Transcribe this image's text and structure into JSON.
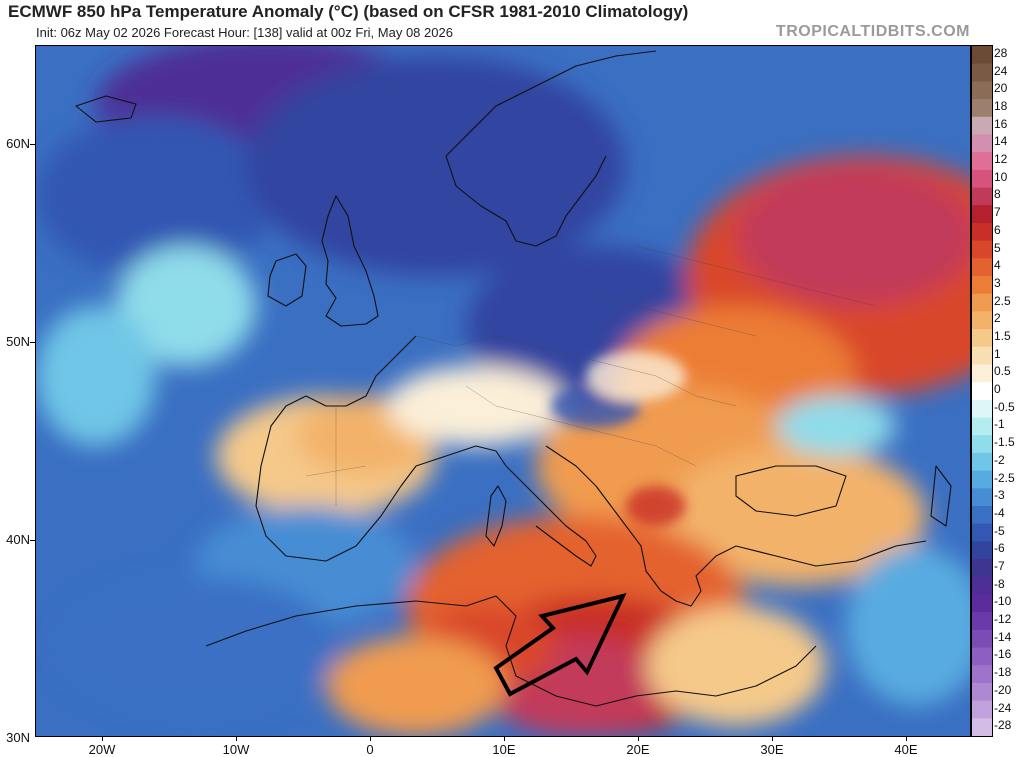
{
  "header": {
    "title": "ECMWF 850 hPa Temperature Anomaly (°C) (based on CFSR 1981-2010 Climatology)",
    "subtitle": "Init: 06z May 02 2026   Forecast Hour: [138]   valid at 00z Fri, May 08 2026",
    "watermark": "TROPICALTIDBITS.COM"
  },
  "map": {
    "lat_labels": [
      "60N",
      "50N",
      "40N",
      "30N"
    ],
    "lon_labels": [
      "20W",
      "10W",
      "0",
      "10E",
      "20E",
      "30E",
      "40E"
    ]
  },
  "colorbar": {
    "labels": [
      "28",
      "24",
      "20",
      "18",
      "16",
      "14",
      "12",
      "10",
      "8",
      "7",
      "6",
      "5",
      "4",
      "3",
      "2.5",
      "2",
      "1.5",
      "1",
      "0.5",
      "0",
      "-0.5",
      "-1",
      "-1.5",
      "-2",
      "-2.5",
      "-3",
      "-4",
      "-5",
      "-6",
      "-7",
      "-8",
      "-10",
      "-12",
      "-14",
      "-16",
      "-18",
      "-20",
      "-24",
      "-28"
    ],
    "colors": [
      "#6b4b34",
      "#7a5a42",
      "#8b6c57",
      "#9c806f",
      "#c9a9b4",
      "#d28fb0",
      "#e06f98",
      "#d8537c",
      "#c23a5a",
      "#b51f2e",
      "#c92f28",
      "#d9472b",
      "#e4622f",
      "#ec7d36",
      "#f09b4f",
      "#f3b26a",
      "#f5c98a",
      "#f8dfb2",
      "#fbefd8",
      "#ffffff",
      "#dff6f8",
      "#b5ecf0",
      "#8fdcea",
      "#6fc6e6",
      "#58abe0",
      "#478dd4",
      "#3a70c4",
      "#3357b2",
      "#3044a0",
      "#3d358f",
      "#4d2f96",
      "#5c2c9e",
      "#6a3aaa",
      "#7a4cb6",
      "#8c5fc0",
      "#9d74ca",
      "#ae89d3",
      "#c0a1dc",
      "#d3bce6"
    ]
  }
}
